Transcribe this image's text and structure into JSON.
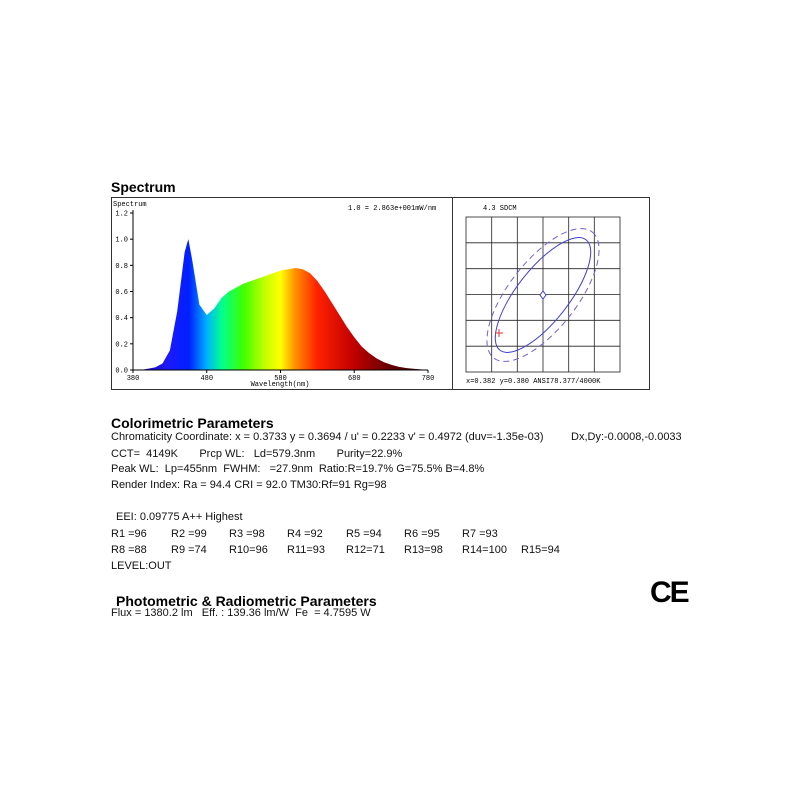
{
  "spectrum_heading": "Spectrum",
  "spectrum_chart": {
    "type": "area",
    "title": "Spectrum",
    "annotation": "1.0 = 2.863e+001mW/nm",
    "x_label": "Wavelength(nm)",
    "x": [
      380,
      390,
      400,
      410,
      420,
      430,
      440,
      450,
      455,
      460,
      470,
      480,
      490,
      500,
      510,
      520,
      530,
      540,
      550,
      560,
      570,
      580,
      590,
      600,
      610,
      620,
      630,
      640,
      650,
      660,
      670,
      680,
      690,
      700,
      710,
      720,
      730,
      740,
      750,
      760,
      770,
      780
    ],
    "values": [
      0,
      0,
      0.01,
      0.02,
      0.05,
      0.15,
      0.45,
      0.9,
      1.0,
      0.85,
      0.5,
      0.42,
      0.47,
      0.55,
      0.6,
      0.63,
      0.66,
      0.68,
      0.7,
      0.72,
      0.74,
      0.76,
      0.77,
      0.78,
      0.77,
      0.74,
      0.68,
      0.6,
      0.51,
      0.42,
      0.33,
      0.25,
      0.18,
      0.13,
      0.09,
      0.06,
      0.04,
      0.025,
      0.015,
      0.01,
      0.005,
      0
    ],
    "xlim": [
      380,
      780
    ],
    "xticks": [
      380,
      480,
      580,
      680,
      780
    ],
    "ylim": [
      0,
      1.2
    ],
    "yticks": [
      {
        "value": 0,
        "label": "0.0"
      },
      0.2,
      0.4,
      0.6,
      0.8,
      {
        "value": 1,
        "label": "1.0"
      },
      1.2
    ]
  },
  "sdcm_panel": {
    "title": "4.3 SDCM",
    "caption": "x=0.382 y=0.380 ANSI78.377/4000K"
  },
  "colorimetric": {
    "heading": "Colorimetric Parameters",
    "chromaticity": "Chromaticity Coordinate: x = 0.3733 y = 0.3694 / u' = 0.2233 v' = 0.4972 (duv=-1.35e-03)",
    "dxdy": "Dx,Dy:-0.0008,-0.0033",
    "cct": "CCT=  4149K       Prcp WL:   Ld=579.3nm       Purity=22.9%",
    "peak": "Peak WL:  Lp=455nm  FWHM:   =27.9nm  Ratio:R=19.7% G=75.5% B=4.8%",
    "render": "Render Index: Ra = 94.4 CRI = 92.0 TM30:Rf=91 Rg=98",
    "eei": "EEI: 0.09775 A++ Highest",
    "r_values": [
      [
        "R1 =96",
        "R2 =99",
        "R3 =98",
        "R4 =92",
        "R5 =94",
        "R6 =95",
        "R7 =93"
      ],
      [
        "R8 =88",
        "R9 =74",
        "R10=96",
        "R11=93",
        "R12=71",
        "R13=98",
        "R14=100",
        "R15=94"
      ]
    ],
    "level": "LEVEL:OUT"
  },
  "photometric": {
    "heading": "Photometric & Radiometric Parameters",
    "flux": "Flux = 1380.2 lm   Eff. : 139.36 lm/W  Fe  = 4.7595 W"
  },
  "ce_mark": "CE"
}
